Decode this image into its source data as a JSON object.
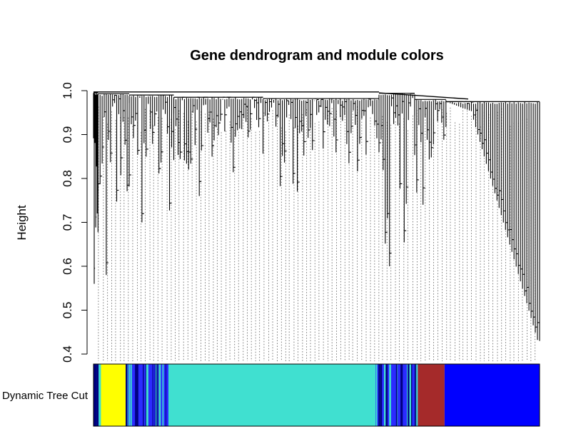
{
  "chart_data": {
    "type": "dendrogram",
    "title": "Gene dendrogram and module colors",
    "ylabel": "Height",
    "xlabel": "",
    "ylim": [
      0.4,
      1.0
    ],
    "yticks": [
      0.4,
      0.5,
      0.6,
      0.7,
      0.8,
      0.9,
      1.0
    ],
    "ytick_labels": [
      "0.4",
      "0.5",
      "0.6",
      "0.7",
      "0.8",
      "0.9",
      "1.0"
    ],
    "colorbar_label": "Dynamic Tree Cut",
    "leaf_order_range": [
      0,
      1
    ],
    "modules": [
      {
        "color": "#1a3aff",
        "start": 0.0,
        "end": 0.013
      },
      {
        "color": "#ffff00",
        "start": 0.013,
        "end": 0.072
      },
      {
        "color": "#2b2bff",
        "start": 0.072,
        "end": 0.168
      },
      {
        "color": "#40e0d0",
        "start": 0.168,
        "end": 0.632
      },
      {
        "color": "#2b2bff",
        "start": 0.632,
        "end": 0.727
      },
      {
        "color": "#a52a2a",
        "start": 0.727,
        "end": 0.787
      },
      {
        "color": "#0000ff",
        "start": 0.787,
        "end": 1.0
      }
    ],
    "clusters": [
      {
        "x": [
          0.0,
          0.01
        ],
        "min_height": 0.56,
        "top": 0.995
      },
      {
        "x": [
          0.01,
          0.08
        ],
        "min_height": 0.58,
        "top": 0.993
      },
      {
        "x": [
          0.08,
          0.18
        ],
        "min_height": 0.7,
        "top": 0.99
      },
      {
        "x": [
          0.18,
          0.38
        ],
        "min_height": 0.76,
        "top": 0.985
      },
      {
        "x": [
          0.38,
          0.64
        ],
        "min_height": 0.77,
        "top": 0.982
      },
      {
        "x": [
          0.64,
          0.72
        ],
        "min_height": 0.6,
        "top": 0.994
      },
      {
        "x": [
          0.72,
          0.79
        ],
        "min_height": 0.74,
        "top": 0.98
      },
      {
        "x": [
          0.79,
          1.0
        ],
        "min_height": 0.43,
        "top": 0.975
      }
    ]
  }
}
